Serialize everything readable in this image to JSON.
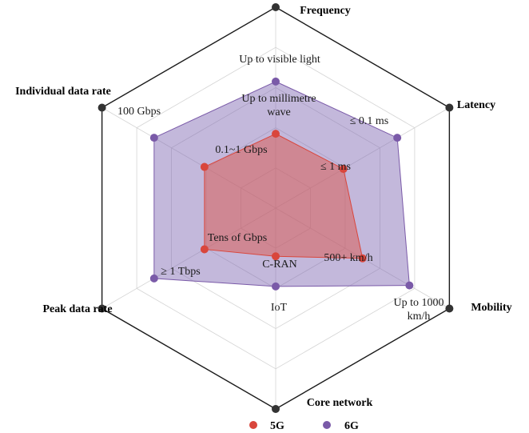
{
  "chart_data": {
    "type": "radar",
    "axes": [
      "Frequency",
      "Latency",
      "Mobility",
      "Core network",
      "Peak data rate",
      "Individual data rate"
    ],
    "scale_max": 5,
    "series": [
      {
        "name": "5G",
        "color": "#d9463c",
        "fill": "rgba(217, 95, 88, 0.55)",
        "values": [
          1.85,
          1.95,
          2.5,
          1.2,
          2.05,
          2.05
        ],
        "labels": [
          "Up to millimetre wave",
          "≤ 1 ms",
          "500+ km/h",
          "C-RAN",
          "Tens of Gbps",
          "0.1~1 Gbps"
        ]
      },
      {
        "name": "6G",
        "color": "#7a5aa8",
        "fill": "rgba(123, 98, 176, 0.45)",
        "values": [
          3.15,
          3.5,
          3.85,
          1.95,
          3.5,
          3.5
        ],
        "labels": [
          "Up to visible light",
          "≤ 0.1 ms",
          "Up to 1000 km/h",
          "IoT",
          "≥ 1 Tbps",
          "100 Gbps"
        ]
      }
    ],
    "legend": "bottom"
  }
}
